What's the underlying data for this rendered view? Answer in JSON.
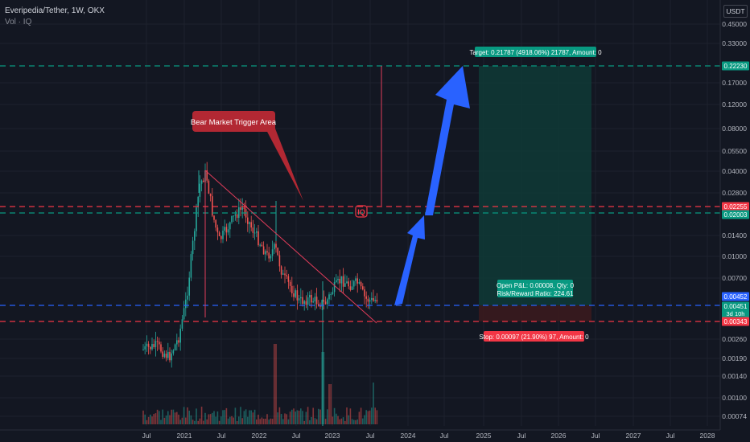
{
  "header": {
    "symbol": "Everipedia/Tether, 1W, OKX",
    "indicator": "Vol · IQ",
    "currency": "USDT"
  },
  "colors": {
    "background": "#131722",
    "up": "#26a69a",
    "down": "#ef5350",
    "arrow": "#2962ff",
    "target_zone": "#0f3a36",
    "stop_zone": "#3a1a1e",
    "red_line": "#f23645",
    "green_line": "#089981",
    "blue_line": "#2962ff"
  },
  "chart_data": {
    "type": "candlestick",
    "yscale": "log",
    "x_ticks": [
      "Jul",
      "2021",
      "Jul",
      "2022",
      "Jul",
      "2023",
      "Jul",
      "2024",
      "Jul",
      "2025",
      "Jul",
      "2026",
      "Jul",
      "2027",
      "Jul",
      "2028"
    ],
    "y_ticks": [
      "0.45000",
      "0.33000",
      "0.17000",
      "0.12000",
      "0.08000",
      "0.05500",
      "0.04000",
      "0.02800",
      "0.01400",
      "0.01000",
      "0.00700",
      "0.00260",
      "0.00190",
      "0.00140",
      "0.00100",
      "0.00074"
    ],
    "price_badges": [
      {
        "label": "0.22230",
        "kind": "green"
      },
      {
        "label": "0.02255",
        "kind": "red"
      },
      {
        "label": "0.02003",
        "kind": "green"
      },
      {
        "label": "0.00452",
        "kind": "blue"
      },
      {
        "label": "0.00451",
        "kind": "green",
        "extra": "3d 10h"
      },
      {
        "label": "0.00343",
        "kind": "red"
      }
    ],
    "annotations": {
      "callout": "Bear Market Trigger Area",
      "target": "Target: 0.21787 (4918.06%) 21787, Amount: 0",
      "stop": "Stop: 0.00097 (21.90%) 97, Amount: 0",
      "pnl_line1": "Open P&L: 0.00008, Qty: 0",
      "pnl_line2": "Risk/Reward Ratio: 224.61"
    }
  }
}
